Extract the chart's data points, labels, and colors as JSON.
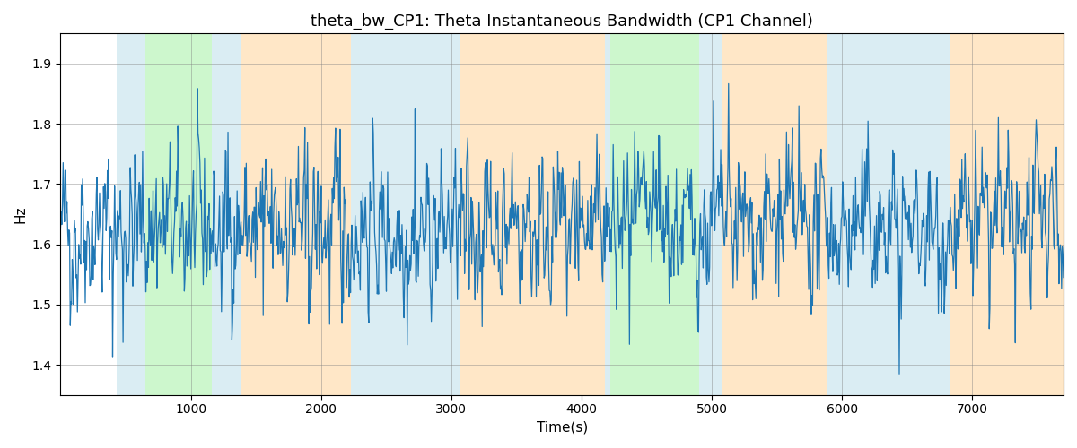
{
  "title": "theta_bw_CP1: Theta Instantaneous Bandwidth (CP1 Channel)",
  "xlabel": "Time(s)",
  "ylabel": "Hz",
  "ylim": [
    1.35,
    1.95
  ],
  "xlim": [
    0,
    7700
  ],
  "line_color": "#1f77b4",
  "line_width": 0.9,
  "background_color": "#ffffff",
  "seed": 42,
  "n_points": 1540,
  "x_max": 7700,
  "base_mean": 1.625,
  "base_std": 0.048,
  "spike_prob": 0.06,
  "spike_scale": 0.09,
  "envelope_decay": 0.3,
  "colored_bands": [
    {
      "start": 430,
      "end": 650,
      "color": "#add8e6",
      "alpha": 0.45
    },
    {
      "start": 650,
      "end": 1160,
      "color": "#90ee90",
      "alpha": 0.45
    },
    {
      "start": 1160,
      "end": 1380,
      "color": "#add8e6",
      "alpha": 0.45
    },
    {
      "start": 1380,
      "end": 2230,
      "color": "#ffd59a",
      "alpha": 0.55
    },
    {
      "start": 2230,
      "end": 2980,
      "color": "#add8e6",
      "alpha": 0.45
    },
    {
      "start": 2980,
      "end": 3060,
      "color": "#add8e6",
      "alpha": 0.45
    },
    {
      "start": 3060,
      "end": 4180,
      "color": "#ffd59a",
      "alpha": 0.55
    },
    {
      "start": 4180,
      "end": 4220,
      "color": "#add8e6",
      "alpha": 0.45
    },
    {
      "start": 4220,
      "end": 4900,
      "color": "#90ee90",
      "alpha": 0.45
    },
    {
      "start": 4900,
      "end": 5080,
      "color": "#add8e6",
      "alpha": 0.45
    },
    {
      "start": 5080,
      "end": 5880,
      "color": "#ffd59a",
      "alpha": 0.55
    },
    {
      "start": 5880,
      "end": 6830,
      "color": "#add8e6",
      "alpha": 0.45
    },
    {
      "start": 6830,
      "end": 7700,
      "color": "#ffd59a",
      "alpha": 0.55
    }
  ],
  "title_fontsize": 13,
  "axis_fontsize": 11,
  "figsize": [
    12.0,
    5.0
  ],
  "dpi": 100,
  "yticks": [
    1.4,
    1.5,
    1.6,
    1.7,
    1.8,
    1.9
  ],
  "xticks": [
    1000,
    2000,
    3000,
    4000,
    5000,
    6000,
    7000
  ]
}
